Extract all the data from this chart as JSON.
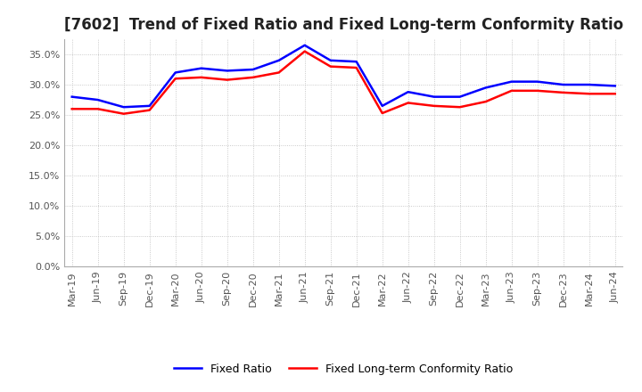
{
  "title": "[7602]  Trend of Fixed Ratio and Fixed Long-term Conformity Ratio",
  "x_labels": [
    "Mar-19",
    "Jun-19",
    "Sep-19",
    "Dec-19",
    "Mar-20",
    "Jun-20",
    "Sep-20",
    "Dec-20",
    "Mar-21",
    "Jun-21",
    "Sep-21",
    "Dec-21",
    "Mar-22",
    "Jun-22",
    "Sep-22",
    "Dec-22",
    "Mar-23",
    "Jun-23",
    "Sep-23",
    "Dec-23",
    "Mar-24",
    "Jun-24"
  ],
  "fixed_ratio": [
    28.0,
    27.5,
    26.3,
    26.5,
    32.0,
    32.7,
    32.3,
    32.5,
    34.0,
    36.5,
    34.0,
    33.8,
    26.5,
    28.8,
    28.0,
    28.0,
    29.5,
    30.5,
    30.5,
    30.0,
    30.0,
    29.8
  ],
  "fixed_lt_ratio": [
    26.0,
    26.0,
    25.2,
    25.8,
    31.0,
    31.2,
    30.8,
    31.2,
    32.0,
    35.5,
    33.0,
    32.8,
    25.3,
    27.0,
    26.5,
    26.3,
    27.2,
    29.0,
    29.0,
    28.7,
    28.5,
    28.5
  ],
  "fixed_ratio_color": "#0000FF",
  "fixed_lt_ratio_color": "#FF0000",
  "ylim": [
    0.0,
    37.5
  ],
  "yticks": [
    0.0,
    5.0,
    10.0,
    15.0,
    20.0,
    25.0,
    30.0,
    35.0
  ],
  "legend_fixed_ratio": "Fixed Ratio",
  "legend_fixed_lt_ratio": "Fixed Long-term Conformity Ratio",
  "background_color": "#FFFFFF",
  "plot_bg_color": "#FFFFFF",
  "grid_color": "#BBBBBB",
  "title_fontsize": 12,
  "axis_fontsize": 8,
  "tick_label_color": "#555555",
  "legend_fontsize": 9,
  "line_width": 1.8
}
